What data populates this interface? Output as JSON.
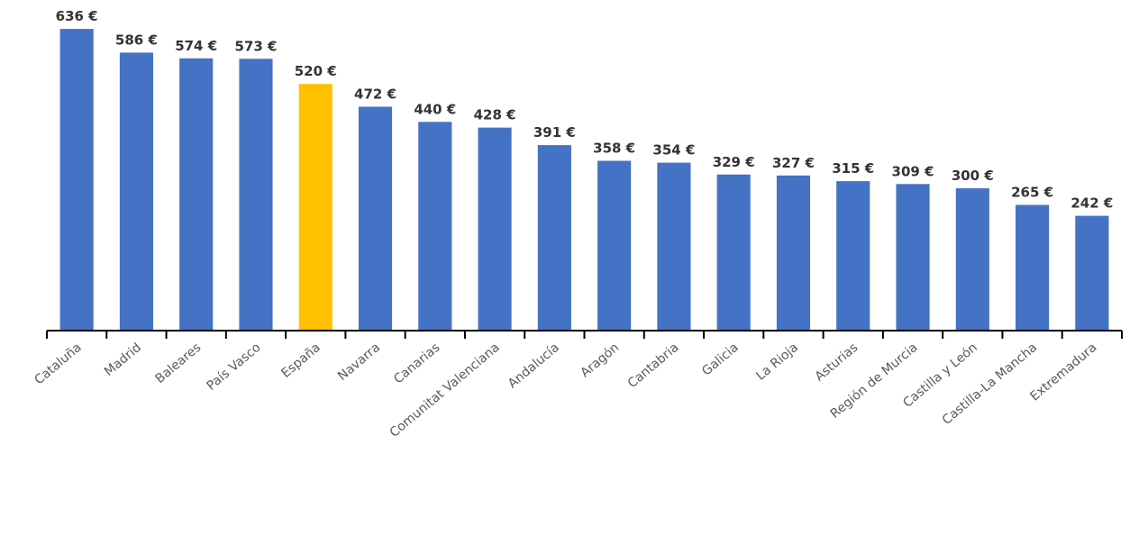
{
  "colors": {
    "bar": "#4472C4",
    "highlight": "#FFC000",
    "axis": "#000000",
    "label_text": "#333333",
    "tick_text": "#595959"
  },
  "chart_data": {
    "type": "bar",
    "title": "",
    "xlabel": "",
    "ylabel": "",
    "ylim": [
      0,
      640
    ],
    "grid": false,
    "legend": "none",
    "value_suffix": " €",
    "highlight_category": "España",
    "categories": [
      "Cataluña",
      "Madrid",
      "Baleares",
      "País Vasco",
      "España",
      "Navarra",
      "Canarias",
      "Comunitat Valenciana",
      "Andalucía",
      "Aragón",
      "Cantabria",
      "Galicia",
      "La Rioja",
      "Asturias",
      "Región de Murcia",
      "Castilla y León",
      "Castilla-La Mancha",
      "Extremadura"
    ],
    "values": [
      636,
      586,
      574,
      573,
      520,
      472,
      440,
      428,
      391,
      358,
      354,
      329,
      327,
      315,
      309,
      300,
      265,
      242
    ],
    "data_labels": [
      "636 €",
      "586 €",
      "574 €",
      "573 €",
      "520 €",
      "472 €",
      "440 €",
      "428 €",
      "391 €",
      "358 €",
      "354 €",
      "329 €",
      "327 €",
      "315 €",
      "309 €",
      "300 €",
      "265 €",
      "242 €"
    ]
  }
}
